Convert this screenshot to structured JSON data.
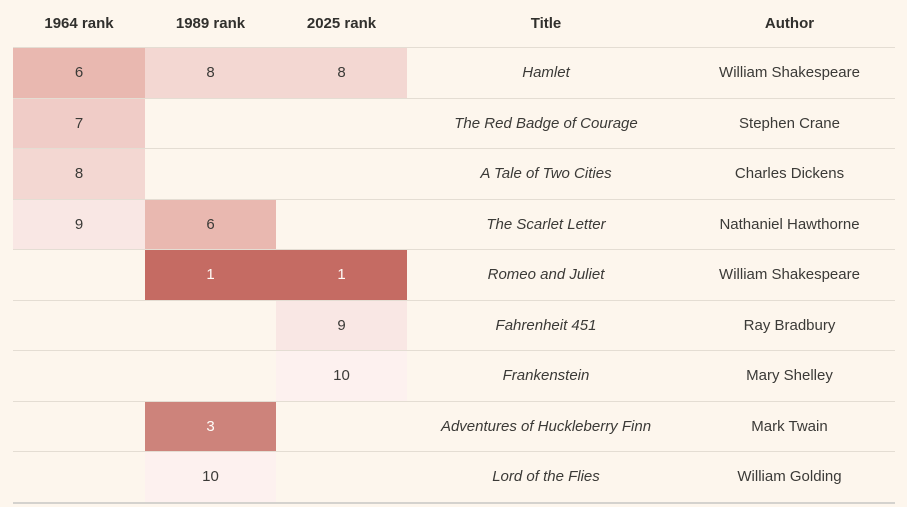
{
  "table": {
    "headers": [
      {
        "label": "1964 rank"
      },
      {
        "label": "1989 rank"
      },
      {
        "label": "2025 rank"
      },
      {
        "label": "Title"
      },
      {
        "label": "Author"
      }
    ],
    "rows": [
      {
        "r1964": "6",
        "r1989": "8",
        "r2025": "8",
        "title": "Hamlet",
        "author": "William Shakespeare"
      },
      {
        "r1964": "7",
        "r1989": "",
        "r2025": "",
        "title": "The Red Badge of Courage",
        "author": "Stephen Crane"
      },
      {
        "r1964": "8",
        "r1989": "",
        "r2025": "",
        "title": "A Tale of Two Cities",
        "author": "Charles Dickens"
      },
      {
        "r1964": "9",
        "r1989": "6",
        "r2025": "",
        "title": "The Scarlet Letter",
        "author": "Nathaniel Hawthorne"
      },
      {
        "r1964": "",
        "r1989": "1",
        "r2025": "1",
        "title": "Romeo and Juliet",
        "author": "William Shakespeare"
      },
      {
        "r1964": "",
        "r1989": "",
        "r2025": "9",
        "title": "Fahrenheit 451",
        "author": "Ray Bradbury"
      },
      {
        "r1964": "",
        "r1989": "",
        "r2025": "10",
        "title": "Frankenstein",
        "author": "Mary Shelley"
      },
      {
        "r1964": "",
        "r1989": "3",
        "r2025": "",
        "title": "Adventures of Huckleberry Finn",
        "author": "Mark Twain"
      },
      {
        "r1964": "",
        "r1989": "10",
        "r2025": "",
        "title": "Lord of the Flies",
        "author": "William Golding"
      }
    ]
  },
  "heatmap": {
    "colors": {
      "1": "#c56b63",
      "3": "#cd837b",
      "6": "#e9b8b0",
      "7": "#f0ccc7",
      "8": "#f3d7d2",
      "9": "#f9e7e4",
      "10": "#fdf1ef"
    },
    "white_text_values": [
      "1",
      "3"
    ],
    "background": "#fdf6ed"
  },
  "chart_data": {
    "type": "table",
    "title": "",
    "columns": [
      "1964 rank",
      "1989 rank",
      "2025 rank",
      "Title",
      "Author"
    ],
    "rows": [
      [
        6,
        8,
        8,
        "Hamlet",
        "William Shakespeare"
      ],
      [
        7,
        null,
        null,
        "The Red Badge of Courage",
        "Stephen Crane"
      ],
      [
        8,
        null,
        null,
        "A Tale of Two Cities",
        "Charles Dickens"
      ],
      [
        9,
        6,
        null,
        "The Scarlet Letter",
        "Nathaniel Hawthorne"
      ],
      [
        null,
        1,
        1,
        "Romeo and Juliet",
        "William Shakespeare"
      ],
      [
        null,
        null,
        9,
        "Fahrenheit 451",
        "Ray Bradbury"
      ],
      [
        null,
        null,
        10,
        "Frankenstein",
        "Mary Shelley"
      ],
      [
        null,
        3,
        null,
        "Adventures of Huckleberry Finn",
        "Mark Twain"
      ],
      [
        null,
        10,
        null,
        "Lord of the Flies",
        "William Golding"
      ]
    ],
    "notes": "Rank cells shaded with sequential red colormap: rank 1 darkest, rank 10 lightest; empty cells unshaded"
  }
}
